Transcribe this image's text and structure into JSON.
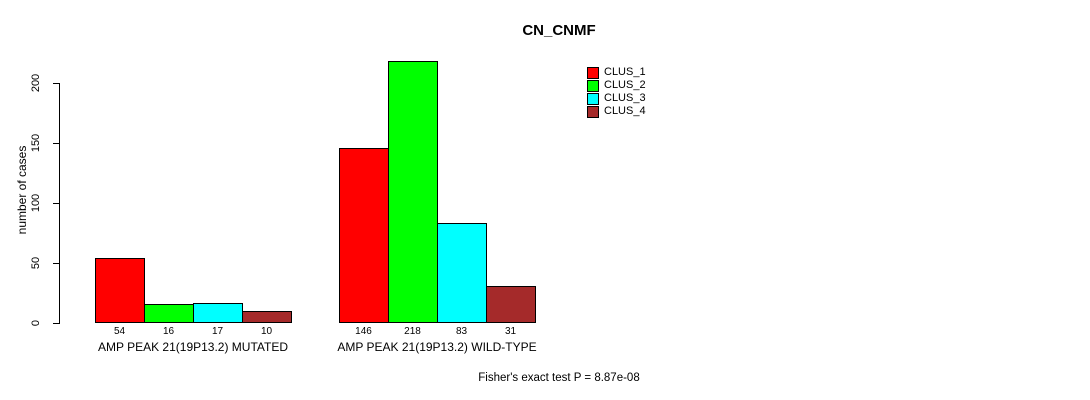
{
  "chart_data": {
    "type": "bar",
    "title": "CN_CNMF",
    "xlabel": "",
    "ylabel": "number of cases",
    "ylim": [
      0,
      220
    ],
    "yticks": [
      0,
      50,
      100,
      150,
      200
    ],
    "grid": false,
    "legend_position": "inside-top-right",
    "categories": [
      "AMP PEAK 21(19P13.2) MUTATED",
      "AMP PEAK 21(19P13.2) WILD-TYPE"
    ],
    "series": [
      {
        "name": "CLUS_1",
        "color": "#ff0000",
        "values": [
          54,
          146
        ]
      },
      {
        "name": "CLUS_2",
        "color": "#00ff00",
        "values": [
          16,
          218
        ]
      },
      {
        "name": "CLUS_3",
        "color": "#00ffff",
        "values": [
          17,
          83
        ]
      },
      {
        "name": "CLUS_4",
        "color": "#a52a2a",
        "values": [
          10,
          31
        ]
      }
    ],
    "bar_value_labels_shown": true,
    "annotation": "Fisher's exact test P = 8.87e-08"
  },
  "colors": {
    "background": "#ffffff",
    "foreground": "#000000"
  }
}
